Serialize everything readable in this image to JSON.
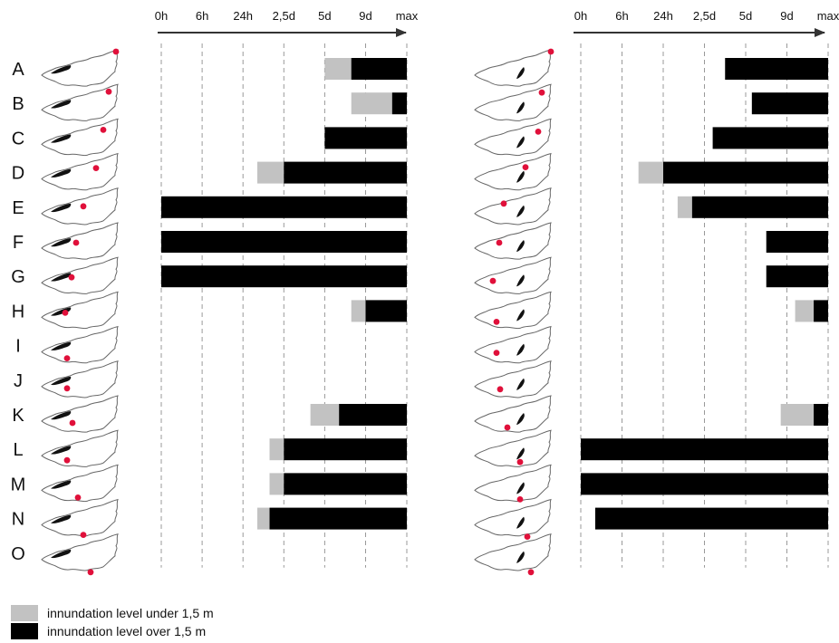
{
  "chart_data": {
    "type": "bar",
    "bar_kind": "horizontal-range",
    "time_ticks": [
      "0h",
      "6h",
      "24h",
      "2,5d",
      "5d",
      "9d",
      "max"
    ],
    "rows": [
      "A",
      "B",
      "C",
      "D",
      "E",
      "F",
      "G",
      "H",
      "I",
      "J",
      "K",
      "L",
      "M",
      "N",
      "O"
    ],
    "legend": [
      {
        "label": "innundation level under 1,5 m",
        "color": "#c2c2c2"
      },
      {
        "label": "innundation level over 1,5 m",
        "color": "#000000"
      }
    ],
    "panels": [
      {
        "id": "left",
        "rows": [
          {
            "row": "A",
            "light_start": 4.0,
            "dark_start": 4.65
          },
          {
            "row": "B",
            "light_start": 4.65,
            "dark_start": 5.65
          },
          {
            "row": "C",
            "light_start": null,
            "dark_start": 4.0
          },
          {
            "row": "D",
            "light_start": 2.35,
            "dark_start": 3.0
          },
          {
            "row": "E",
            "light_start": null,
            "dark_start": 0.0
          },
          {
            "row": "F",
            "light_start": null,
            "dark_start": 0.0
          },
          {
            "row": "G",
            "light_start": null,
            "dark_start": 0.0
          },
          {
            "row": "H",
            "light_start": 4.65,
            "dark_start": 5.0
          },
          {
            "row": "I",
            "light_start": null,
            "dark_start": null
          },
          {
            "row": "J",
            "light_start": null,
            "dark_start": null
          },
          {
            "row": "K",
            "light_start": 3.65,
            "dark_start": 4.35
          },
          {
            "row": "L",
            "light_start": 2.65,
            "dark_start": 3.0
          },
          {
            "row": "M",
            "light_start": 2.65,
            "dark_start": 3.0
          },
          {
            "row": "N",
            "light_start": 2.35,
            "dark_start": 2.65
          },
          {
            "row": "O",
            "light_start": null,
            "dark_start": null
          }
        ]
      },
      {
        "id": "right",
        "rows": [
          {
            "row": "A",
            "light_start": null,
            "dark_start": 3.5
          },
          {
            "row": "B",
            "light_start": null,
            "dark_start": 4.15
          },
          {
            "row": "C",
            "light_start": null,
            "dark_start": 3.2
          },
          {
            "row": "D",
            "light_start": 1.4,
            "dark_start": 2.0
          },
          {
            "row": "E",
            "light_start": 2.35,
            "dark_start": 2.7
          },
          {
            "row": "F",
            "light_start": null,
            "dark_start": 4.5
          },
          {
            "row": "G",
            "light_start": null,
            "dark_start": 4.5
          },
          {
            "row": "H",
            "light_start": 5.2,
            "dark_start": 5.65
          },
          {
            "row": "I",
            "light_start": null,
            "dark_start": null
          },
          {
            "row": "J",
            "light_start": null,
            "dark_start": null
          },
          {
            "row": "K",
            "light_start": 4.85,
            "dark_start": 5.65
          },
          {
            "row": "L",
            "light_start": null,
            "dark_start": 0.0
          },
          {
            "row": "M",
            "light_start": null,
            "dark_start": 0.0
          },
          {
            "row": "N",
            "light_start": null,
            "dark_start": 0.35
          },
          {
            "row": "O",
            "light_start": null,
            "dark_start": null
          }
        ]
      }
    ]
  }
}
